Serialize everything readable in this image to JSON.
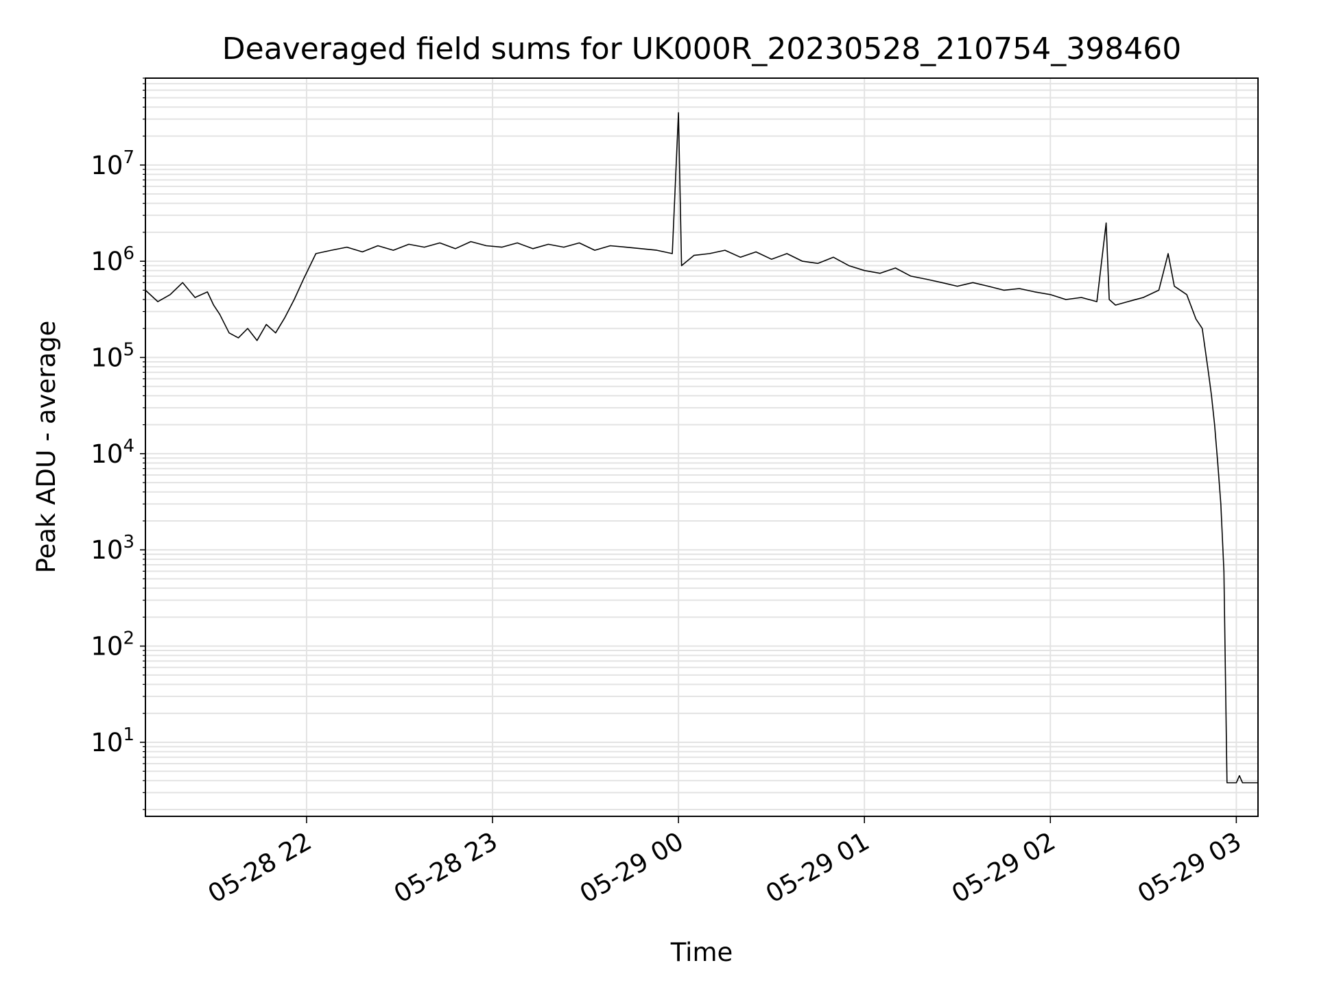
{
  "chart_data": {
    "type": "line",
    "title": "Deaveraged field sums for UK000R_20230528_210754_398460",
    "xlabel": "Time",
    "ylabel": "Peak ADU - average",
    "yscale": "log",
    "ylim": [
      1.7,
      80000000
    ],
    "xlim": [
      "2023-05-28 21:08",
      "2023-05-29 03:07"
    ],
    "grid": true,
    "line_color": "#000000",
    "grid_color": "#e3e3e3",
    "x_ticks": [
      {
        "value": "2023-05-28 22:00",
        "label": "05-28 22"
      },
      {
        "value": "2023-05-28 23:00",
        "label": "05-28 23"
      },
      {
        "value": "2023-05-29 00:00",
        "label": "05-29 00"
      },
      {
        "value": "2023-05-29 01:00",
        "label": "05-29 01"
      },
      {
        "value": "2023-05-29 02:00",
        "label": "05-29 02"
      },
      {
        "value": "2023-05-29 03:00",
        "label": "05-29 03"
      }
    ],
    "y_ticks": [
      {
        "value": 10,
        "base": "10",
        "exp": "1"
      },
      {
        "value": 100,
        "base": "10",
        "exp": "2"
      },
      {
        "value": 1000,
        "base": "10",
        "exp": "3"
      },
      {
        "value": 10000,
        "base": "10",
        "exp": "4"
      },
      {
        "value": 100000,
        "base": "10",
        "exp": "5"
      },
      {
        "value": 1000000,
        "base": "10",
        "exp": "6"
      },
      {
        "value": 10000000,
        "base": "10",
        "exp": "7"
      }
    ],
    "series": [
      {
        "x": [
          "2023-05-28 21:08",
          "2023-05-28 21:12",
          "2023-05-28 21:16",
          "2023-05-28 21:20",
          "2023-05-28 21:24",
          "2023-05-28 21:28",
          "2023-05-28 21:30",
          "2023-05-28 21:32",
          "2023-05-28 21:35",
          "2023-05-28 21:38",
          "2023-05-28 21:41",
          "2023-05-28 21:44",
          "2023-05-28 21:47",
          "2023-05-28 21:50",
          "2023-05-28 21:53",
          "2023-05-28 21:56",
          "2023-05-28 21:59",
          "2023-05-28 22:03",
          "2023-05-28 22:08",
          "2023-05-28 22:13",
          "2023-05-28 22:18",
          "2023-05-28 22:23",
          "2023-05-28 22:28",
          "2023-05-28 22:33",
          "2023-05-28 22:38",
          "2023-05-28 22:43",
          "2023-05-28 22:48",
          "2023-05-28 22:53",
          "2023-05-28 22:58",
          "2023-05-28 23:03",
          "2023-05-28 23:08",
          "2023-05-28 23:13",
          "2023-05-28 23:18",
          "2023-05-28 23:23",
          "2023-05-28 23:28",
          "2023-05-28 23:33",
          "2023-05-28 23:38",
          "2023-05-28 23:43",
          "2023-05-28 23:48",
          "2023-05-28 23:53",
          "2023-05-28 23:58",
          "2023-05-29 00:00",
          "2023-05-29 00:01",
          "2023-05-29 00:05",
          "2023-05-29 00:10",
          "2023-05-29 00:15",
          "2023-05-29 00:20",
          "2023-05-29 00:25",
          "2023-05-29 00:30",
          "2023-05-29 00:35",
          "2023-05-29 00:40",
          "2023-05-29 00:45",
          "2023-05-29 00:50",
          "2023-05-29 00:55",
          "2023-05-29 01:00",
          "2023-05-29 01:05",
          "2023-05-29 01:10",
          "2023-05-29 01:15",
          "2023-05-29 01:20",
          "2023-05-29 01:25",
          "2023-05-29 01:30",
          "2023-05-29 01:35",
          "2023-05-29 01:40",
          "2023-05-29 01:45",
          "2023-05-29 01:50",
          "2023-05-29 01:55",
          "2023-05-29 02:00",
          "2023-05-29 02:05",
          "2023-05-29 02:10",
          "2023-05-29 02:15",
          "2023-05-29 02:18",
          "2023-05-29 02:19",
          "2023-05-29 02:21",
          "2023-05-29 02:25",
          "2023-05-29 02:30",
          "2023-05-29 02:35",
          "2023-05-29 02:38",
          "2023-05-29 02:40",
          "2023-05-29 02:44",
          "2023-05-29 02:47",
          "2023-05-29 02:49",
          "2023-05-29 02:51",
          "2023-05-29 02:52",
          "2023-05-29 02:53",
          "2023-05-29 02:54",
          "2023-05-29 02:55",
          "2023-05-29 02:56",
          "2023-05-29 02:57",
          "2023-05-29 02:58",
          "2023-05-29 03:00",
          "2023-05-29 03:01",
          "2023-05-29 03:02",
          "2023-05-29 03:04",
          "2023-05-29 03:07"
        ],
        "y": [
          500000,
          380000,
          450000,
          600000,
          420000,
          480000,
          350000,
          280000,
          180000,
          160000,
          200000,
          150000,
          220000,
          180000,
          260000,
          400000,
          650000,
          1200000,
          1300000,
          1400000,
          1250000,
          1450000,
          1300000,
          1500000,
          1400000,
          1550000,
          1350000,
          1600000,
          1450000,
          1400000,
          1550000,
          1350000,
          1500000,
          1400000,
          1550000,
          1300000,
          1450000,
          1400000,
          1350000,
          1300000,
          1200000,
          35000000,
          900000,
          1150000,
          1200000,
          1300000,
          1100000,
          1250000,
          1050000,
          1200000,
          1000000,
          950000,
          1100000,
          900000,
          800000,
          750000,
          850000,
          700000,
          650000,
          600000,
          550000,
          600000,
          550000,
          500000,
          520000,
          480000,
          450000,
          400000,
          420000,
          380000,
          2500000,
          400000,
          350000,
          380000,
          420000,
          500000,
          1200000,
          550000,
          450000,
          250000,
          200000,
          70000,
          40000,
          20000,
          8000,
          3000,
          600,
          3.8,
          3.8,
          3.8,
          4.5,
          3.8,
          3.8,
          3.8
        ]
      }
    ]
  }
}
